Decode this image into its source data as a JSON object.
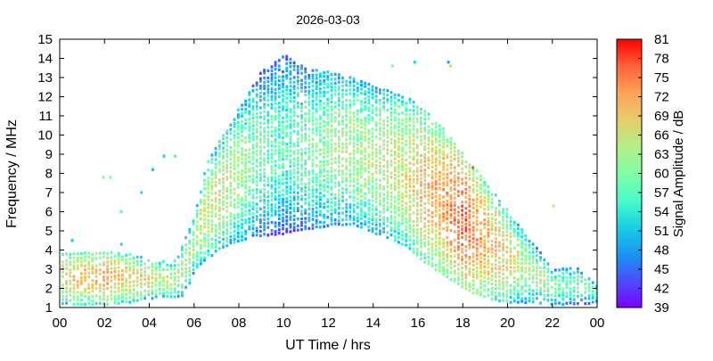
{
  "chart_data": {
    "type": "heatmap",
    "title": "2026-03-03",
    "xlabel": "UT Time / hrs",
    "ylabel": "Frequency / MHz",
    "colorbar_label": "Signal Amplitude / dB",
    "xlim": [
      0,
      24
    ],
    "ylim": [
      1,
      15
    ],
    "x_ticks": [
      "00",
      "02",
      "04",
      "06",
      "08",
      "10",
      "12",
      "14",
      "16",
      "18",
      "20",
      "22",
      "00"
    ],
    "y_ticks": [
      "1",
      "2",
      "3",
      "4",
      "5",
      "6",
      "7",
      "8",
      "9",
      "10",
      "11",
      "12",
      "13",
      "14",
      "15"
    ],
    "colorbar_ticks": [
      "39",
      "42",
      "45",
      "48",
      "51",
      "54",
      "57",
      "60",
      "63",
      "66",
      "69",
      "72",
      "75",
      "78",
      "81"
    ],
    "colorbar_range": [
      39,
      81
    ],
    "colormap": "rainbow",
    "colormap_stops": [
      "#7f00ff",
      "#4b4dfb",
      "#1996f3",
      "#19cfe2",
      "#4bfbc9",
      "#7ffea4",
      "#b2f086",
      "#e6cc6b",
      "#ffa256",
      "#ff6339",
      "#ff0000"
    ],
    "grid": false,
    "legend_placement": "right colorbar",
    "time_resolution_hrs": 0.1667,
    "frequency_resolution_mhz": 0.2,
    "envelope": {
      "hours": [
        0,
        1,
        2,
        3,
        4,
        5,
        5.5,
        6,
        6.5,
        7,
        7.5,
        8,
        8.5,
        9,
        9.5,
        10,
        10.5,
        11,
        12,
        13,
        14,
        15,
        15.5,
        16,
        17,
        18,
        19,
        20,
        21,
        22,
        23,
        24
      ],
      "lowest_freq_mhz": [
        1.2,
        1.2,
        1.2,
        1.3,
        1.5,
        1.6,
        1.6,
        3.0,
        3.5,
        4.0,
        4.3,
        4.5,
        4.7,
        4.8,
        4.8,
        4.9,
        5.0,
        5.1,
        5.3,
        5.4,
        4.9,
        4.5,
        4.2,
        3.6,
        2.8,
        2.0,
        1.5,
        1.3,
        1.3,
        1.2,
        1.2,
        1.3
      ],
      "highest_freq_mhz": [
        4.0,
        4.0,
        4.0,
        3.8,
        3.5,
        3.3,
        4.5,
        6.0,
        8.5,
        9.5,
        10.5,
        11.5,
        12.5,
        13.4,
        13.8,
        14.3,
        13.8,
        13.5,
        13.3,
        13.0,
        12.5,
        12.2,
        12.0,
        11.5,
        10.5,
        9.0,
        7.5,
        6.0,
        4.5,
        3.0,
        3.2,
        2.2
      ],
      "peak_amplitude_db": [
        66,
        70,
        71,
        68,
        67,
        64,
        63,
        64,
        66,
        66,
        65,
        63,
        61,
        59,
        58,
        57,
        58,
        59,
        62,
        63,
        64,
        66,
        67,
        70,
        72,
        76,
        71,
        67,
        63,
        61,
        59,
        60
      ]
    }
  }
}
